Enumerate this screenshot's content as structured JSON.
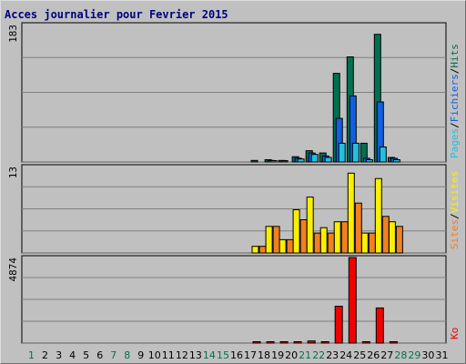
{
  "chart_data": {
    "type": "bar",
    "title": "Acces journalier pour Fevrier 2015",
    "days": [
      "1",
      "2",
      "3",
      "4",
      "5",
      "6",
      "7",
      "8",
      "9",
      "10",
      "11",
      "12",
      "13",
      "14",
      "15",
      "16",
      "17",
      "18",
      "19",
      "20",
      "21",
      "22",
      "23",
      "24",
      "25",
      "26",
      "27",
      "28",
      "29",
      "30",
      "31"
    ],
    "weekend_days": [
      1,
      7,
      8,
      14,
      15,
      21,
      22,
      28,
      29
    ],
    "panels": [
      {
        "id": "pages-fichiers-hits",
        "ymax_label": "183",
        "ymax": 183,
        "legend": [
          "Pages",
          "/",
          "Fichiers",
          "/",
          "Hits"
        ],
        "series": [
          {
            "name": "Hits",
            "color": "#007050",
            "values": [
              0,
              0,
              0,
              0,
              0,
              0,
              0,
              0,
              0,
              0,
              0,
              0,
              0,
              0,
              0,
              0,
              0,
              2,
              3,
              2,
              7,
              15,
              12,
              118,
              140,
              25,
              170,
              6,
              0,
              0,
              0
            ]
          },
          {
            "name": "Fichiers",
            "color": "#1060e0",
            "values": [
              0,
              0,
              0,
              0,
              0,
              0,
              0,
              0,
              0,
              0,
              0,
              0,
              0,
              0,
              0,
              0,
              0,
              0,
              2,
              1,
              5,
              12,
              8,
              58,
              88,
              5,
              80,
              5,
              0,
              0,
              0
            ]
          },
          {
            "name": "Pages",
            "color": "#20c0e0",
            "values": [
              0,
              0,
              0,
              0,
              0,
              0,
              0,
              0,
              0,
              0,
              0,
              0,
              0,
              0,
              0,
              0,
              0,
              0,
              1,
              0,
              4,
              10,
              6,
              25,
              25,
              3,
              20,
              3,
              0,
              0,
              0
            ]
          }
        ]
      },
      {
        "id": "sites-visites",
        "ymax_label": "13",
        "ymax": 13,
        "legend": [
          "Sites",
          "/",
          "Visites"
        ],
        "series": [
          {
            "name": "Visites",
            "color": "#f8f000",
            "values": [
              0,
              0,
              0,
              0,
              0,
              0,
              0,
              0,
              0,
              0,
              0,
              0,
              0,
              0,
              0,
              0,
              0,
              1,
              4,
              2,
              6.5,
              8.4,
              3.8,
              4.7,
              12,
              3,
              11.2,
              4.7,
              0,
              0,
              0
            ]
          },
          {
            "name": "Sites",
            "color": "#f08020",
            "values": [
              0,
              0,
              0,
              0,
              0,
              0,
              0,
              0,
              0,
              0,
              0,
              0,
              0,
              0,
              0,
              0,
              0,
              1,
              4,
              2,
              5,
              3,
              3,
              4.7,
              7.5,
              3,
              5.5,
              4,
              0,
              0,
              0
            ]
          }
        ]
      },
      {
        "id": "ko",
        "ymax_label": "4874",
        "ymax": 4874,
        "legend": [
          "Ko"
        ],
        "series": [
          {
            "name": "Ko",
            "color": "#f00000",
            "values": [
              0,
              0,
              0,
              0,
              0,
              0,
              0,
              0,
              0,
              0,
              0,
              0,
              0,
              0,
              0,
              0,
              0,
              40,
              40,
              40,
              40,
              120,
              40,
              2100,
              4874,
              60,
              2000,
              40,
              0,
              0,
              0
            ]
          }
        ]
      }
    ],
    "colors": {
      "title": "#000080",
      "weekday_label": "#000000",
      "weekend_label": "#007050",
      "background": "#c0c0c0",
      "grid": "#808080"
    }
  }
}
